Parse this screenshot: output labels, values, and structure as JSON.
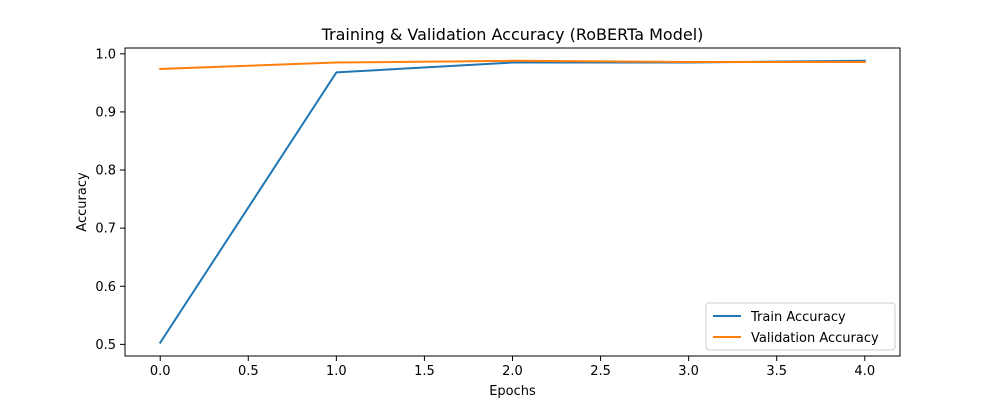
{
  "chart_data": {
    "type": "line",
    "title": "Training & Validation Accuracy (RoBERTa Model)",
    "xlabel": "Epochs",
    "ylabel": "Accuracy",
    "x": [
      0,
      1,
      2,
      3,
      4
    ],
    "xlim": [
      -0.2,
      4.2
    ],
    "ylim": [
      0.48,
      1.01
    ],
    "xticks": [
      0.0,
      0.5,
      1.0,
      1.5,
      2.0,
      2.5,
      3.0,
      3.5,
      4.0
    ],
    "yticks": [
      0.5,
      0.6,
      0.7,
      0.8,
      0.9,
      1.0
    ],
    "xtick_labels": [
      "0.0",
      "0.5",
      "1.0",
      "1.5",
      "2.0",
      "2.5",
      "3.0",
      "3.5",
      "4.0"
    ],
    "ytick_labels": [
      "0.5",
      "0.6",
      "0.7",
      "0.8",
      "0.9",
      "1.0"
    ],
    "grid": false,
    "legend_position": "lower-right",
    "series": [
      {
        "name": "Train Accuracy",
        "color": "#1f77b4",
        "values": [
          0.503,
          0.968,
          0.985,
          0.985,
          0.988
        ]
      },
      {
        "name": "Validation Accuracy",
        "color": "#ff7f0e",
        "values": [
          0.974,
          0.985,
          0.988,
          0.986,
          0.986
        ]
      }
    ]
  }
}
